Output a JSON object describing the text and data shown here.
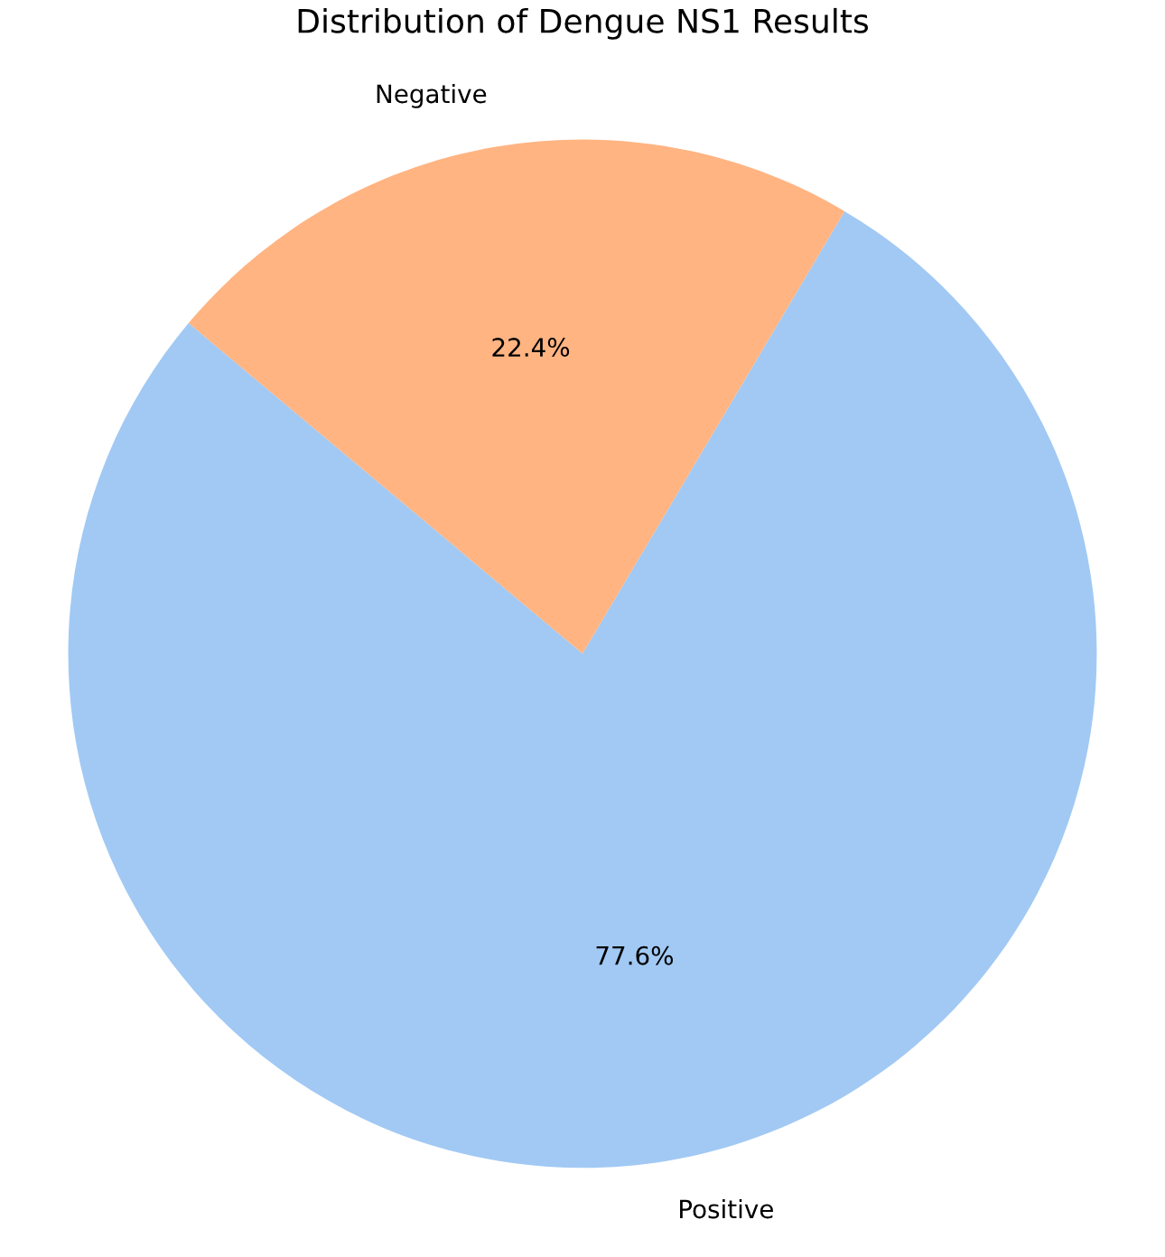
{
  "chart_data": {
    "type": "pie",
    "title": "Distribution of Dengue NS1 Results",
    "categories": [
      "Positive",
      "Negative"
    ],
    "values": [
      77.6,
      22.4
    ],
    "colors": [
      "#a1c9f4",
      "#ffb482"
    ],
    "value_labels": [
      "77.6%",
      "22.4%"
    ]
  }
}
